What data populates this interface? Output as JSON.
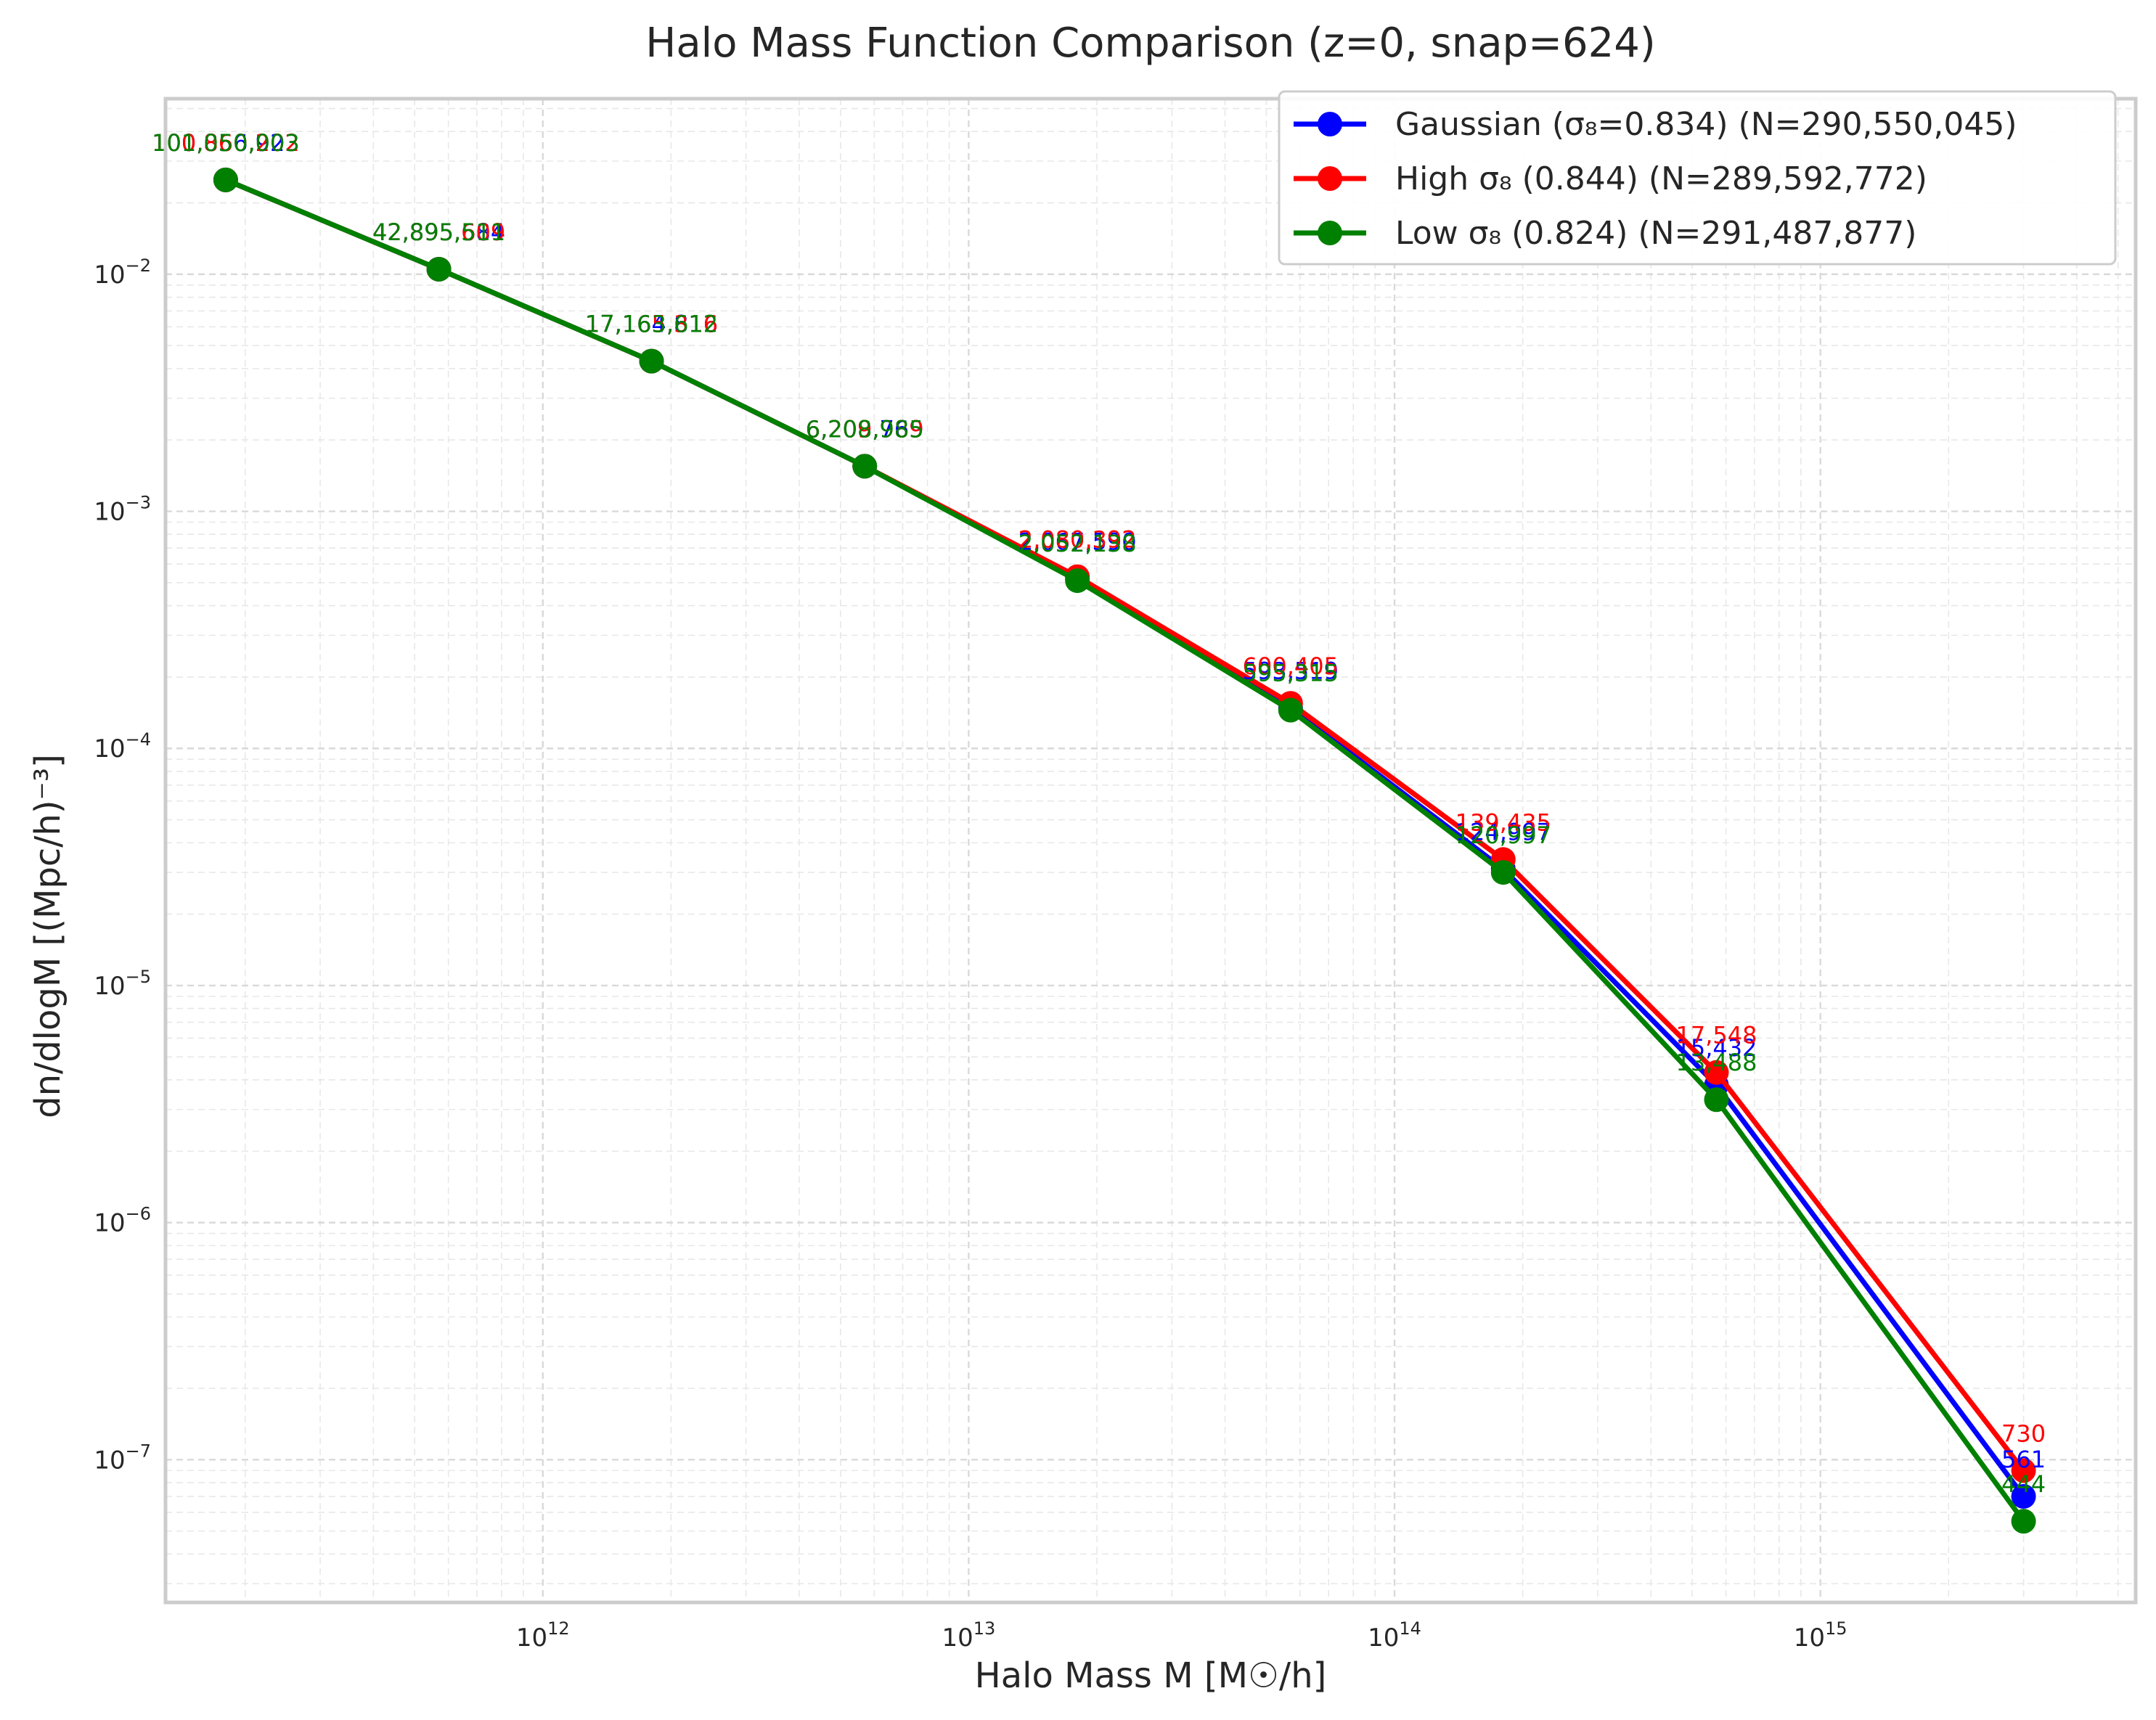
{
  "chart_data": {
    "type": "line",
    "title": "Halo Mass Function Comparison (z=0, snap=624)",
    "xlabel": "Halo Mass M [M☉/h]",
    "ylabel": "dn/dlogM [(Mpc/h)⁻³]",
    "xscale": "log",
    "yscale": "log",
    "xlim": [
      130000000000.0,
      5500000000000000.0
    ],
    "ylim": [
      2.5e-08,
      0.055
    ],
    "grid": true,
    "legend": "top-right",
    "x_ticks": [
      {
        "value": 1000000000000.0,
        "base": "10",
        "exp": "12"
      },
      {
        "value": 10000000000000.0,
        "base": "10",
        "exp": "13"
      },
      {
        "value": 100000000000000.0,
        "base": "10",
        "exp": "14"
      },
      {
        "value": 1000000000000000.0,
        "base": "10",
        "exp": "15"
      }
    ],
    "y_ticks": [
      {
        "value": 0.01,
        "base": "10",
        "exp": "−2"
      },
      {
        "value": 0.001,
        "base": "10",
        "exp": "−3"
      },
      {
        "value": 0.0001,
        "base": "10",
        "exp": "−4"
      },
      {
        "value": 1e-05,
        "base": "10",
        "exp": "−5"
      },
      {
        "value": 1e-06,
        "base": "10",
        "exp": "−6"
      },
      {
        "value": 1e-07,
        "base": "10",
        "exp": "−7"
      }
    ],
    "x": [
      180000000000.0,
      570000000000.0,
      1800000000000.0,
      5700000000000.0,
      18000000000000.0,
      57000000000000.0,
      180000000000000.0,
      570000000000000.0,
      3000000000000000.0
    ],
    "series": [
      {
        "name": "Gaussian (σ₈=0.834) (N=290,550,045)",
        "color": "#0000ff",
        "values": [
          0.025,
          0.0105,
          0.0043,
          0.00155,
          0.00052,
          0.000148,
          3.1e-05,
          3.8e-06,
          7e-08
        ],
        "labels": [
          "100,856,923",
          "42,895,684",
          "17,164,816",
          "6,209,769",
          "2,067,590",
          "593,519",
          "124,997",
          "15,432",
          "561"
        ]
      },
      {
        "name": "High σ₈ (0.844) (N=289,592,772)",
        "color": "#ff0000",
        "values": [
          0.025,
          0.0105,
          0.0043,
          0.00155,
          0.00053,
          0.000155,
          3.4e-05,
          4.3e-06,
          9e-08
        ],
        "labels": [
          "100,860,202",
          "42,895,609",
          "17,165,316",
          "6,209,989",
          "2,080,392",
          "600,405",
          "139,435",
          "17,548",
          "730"
        ]
      },
      {
        "name": "Low σ₈ (0.824) (N=291,487,877)",
        "color": "#008000",
        "values": [
          0.025,
          0.0105,
          0.0043,
          0.00155,
          0.00051,
          0.000145,
          3e-05,
          3.3e-06,
          5.5e-08
        ],
        "labels": [
          "101,050,003",
          "42,895,511",
          "17,163,612",
          "6,208,985",
          "2,052,138",
          "595,315",
          "120,997",
          "13,488",
          "444"
        ]
      }
    ]
  }
}
